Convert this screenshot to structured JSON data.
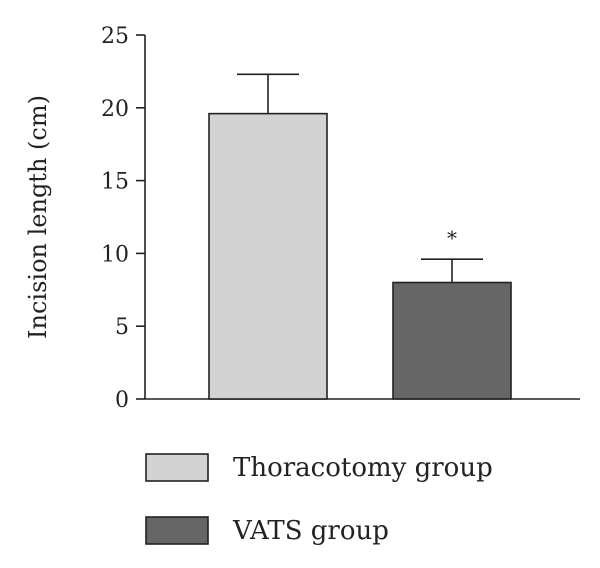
{
  "chart_data": {
    "type": "bar",
    "categories": [
      "Thoracotomy group",
      "VATS group"
    ],
    "values": [
      19.6,
      8.0
    ],
    "errors": [
      2.7,
      1.6
    ],
    "significance": [
      "",
      "*"
    ],
    "colors": [
      "#d3d3d3",
      "#666666"
    ],
    "ylabel": "Incision length (cm)",
    "xlabel": "",
    "ylim": [
      0,
      25
    ],
    "yticks": [
      0,
      5,
      10,
      15,
      20,
      25
    ],
    "legend": {
      "placement": "bottom",
      "entries": [
        {
          "label": "Thoracotomy group",
          "color": "#d3d3d3"
        },
        {
          "label": "VATS group",
          "color": "#666666"
        }
      ]
    }
  }
}
